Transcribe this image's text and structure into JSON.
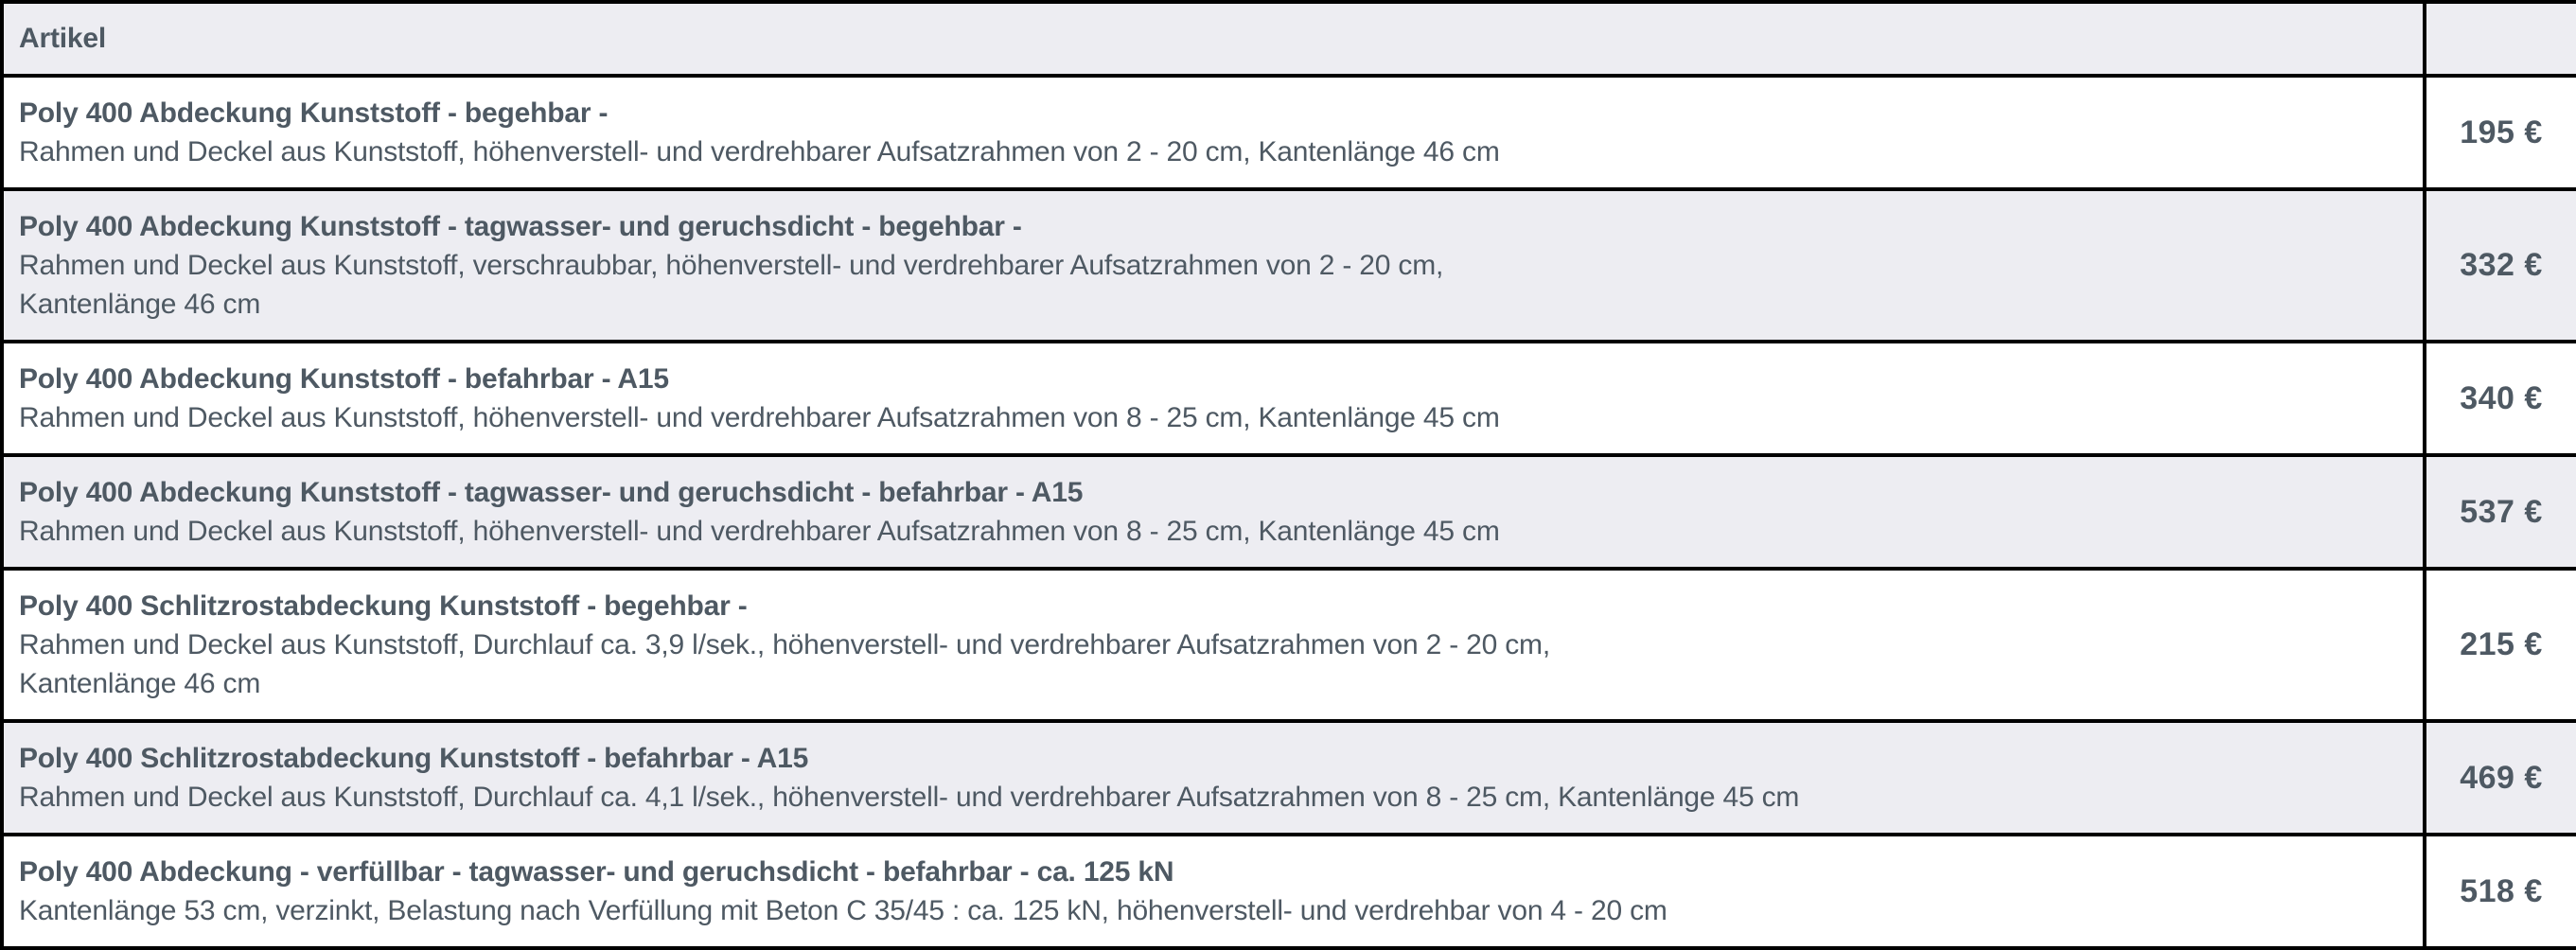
{
  "colors": {
    "stripe": "#ededf2",
    "text": "#4e5963",
    "border": "#000000",
    "row_bg": "#ffffff"
  },
  "table": {
    "header": {
      "artikel": "Artikel",
      "price": ""
    },
    "rows": [
      {
        "title": "Poly 400 Abdeckung Kunststoff - begehbar -",
        "description": "Rahmen und Deckel aus Kunststoff, höhenverstell- und verdrehbarer Aufsatzrahmen von 2 - 20 cm, Kantenlänge 46 cm",
        "price": "195 €"
      },
      {
        "title": "Poly 400 Abdeckung Kunststoff - tagwasser- und geruchsdicht - begehbar -",
        "description": "Rahmen und Deckel aus Kunststoff, verschraubbar, höhenverstell- und verdrehbarer Aufsatzrahmen von 2 - 20 cm,\nKantenlänge 46 cm",
        "price": "332 €"
      },
      {
        "title": "Poly 400 Abdeckung Kunststoff - befahrbar - A15",
        "description": "Rahmen und Deckel aus Kunststoff, höhenverstell- und verdrehbarer Aufsatzrahmen von 8 - 25 cm, Kantenlänge 45 cm",
        "price": "340 €"
      },
      {
        "title": "Poly 400 Abdeckung Kunststoff - tagwasser- und geruchsdicht - befahrbar - A15",
        "description": "Rahmen und Deckel aus Kunststoff, höhenverstell- und verdrehbarer Aufsatzrahmen von 8 - 25 cm, Kantenlänge 45 cm",
        "price": "537 €"
      },
      {
        "title": "Poly 400 Schlitzrostabdeckung Kunststoff - begehbar -",
        "description": "Rahmen und Deckel aus Kunststoff, Durchlauf ca. 3,9 l/sek., höhenverstell- und verdrehbarer Aufsatzrahmen von 2 - 20 cm,\nKantenlänge 46 cm",
        "price": "215 €"
      },
      {
        "title": "Poly 400 Schlitzrostabdeckung Kunststoff - befahrbar - A15",
        "description": "Rahmen und Deckel aus Kunststoff, Durchlauf ca. 4,1 l/sek., höhenverstell- und verdrehbarer Aufsatzrahmen von 8 - 25 cm, Kantenlänge 45 cm",
        "price": "469 €"
      },
      {
        "title": "Poly 400 Abdeckung - verfüllbar - tagwasser- und geruchsdicht - befahrbar - ca. 125 kN",
        "description": "Kantenlänge 53 cm, verzinkt, Belastung nach Verfüllung mit Beton C 35/45 : ca. 125 kN, höhenverstell- und verdrehbar von 4 - 20 cm",
        "price": "518 €"
      }
    ]
  }
}
